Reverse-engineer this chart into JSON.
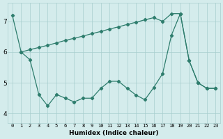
{
  "line1_x": [
    0,
    1,
    2,
    3,
    4,
    5,
    6,
    7,
    8,
    9,
    10,
    11,
    12,
    13,
    14,
    15,
    16,
    17,
    18,
    19,
    20,
    21,
    22,
    23
  ],
  "line1_y": [
    7.2,
    6.0,
    5.75,
    4.62,
    4.25,
    4.62,
    4.5,
    4.38,
    4.5,
    4.5,
    4.82,
    5.05,
    5.05,
    4.82,
    4.6,
    4.45,
    4.85,
    5.3,
    6.55,
    7.25,
    5.72,
    5.0,
    4.82,
    4.82
  ],
  "line2_x": [
    1,
    2,
    3,
    4,
    5,
    6,
    7,
    8,
    9,
    10,
    11,
    12,
    13,
    14,
    15,
    16,
    17,
    18,
    19,
    20,
    21,
    22,
    23
  ],
  "line2_y": [
    6.0,
    6.08,
    6.15,
    6.22,
    6.3,
    6.38,
    6.45,
    6.52,
    6.6,
    6.67,
    6.75,
    6.82,
    6.9,
    6.97,
    7.05,
    7.12,
    7.0,
    7.25,
    7.25,
    5.72,
    5.0,
    4.82,
    4.82
  ],
  "line_color": "#2e7d6d",
  "bg_color": "#d4ecec",
  "grid_color": "#a8cece",
  "xlabel": "Humidex (Indice chaleur)",
  "ylim": [
    3.7,
    7.6
  ],
  "xlim": [
    -0.5,
    23.5
  ],
  "yticks": [
    4,
    5,
    6,
    7
  ],
  "xticks": [
    0,
    1,
    2,
    3,
    4,
    5,
    6,
    7,
    8,
    9,
    10,
    11,
    12,
    13,
    14,
    15,
    16,
    17,
    18,
    19,
    20,
    21,
    22,
    23
  ]
}
